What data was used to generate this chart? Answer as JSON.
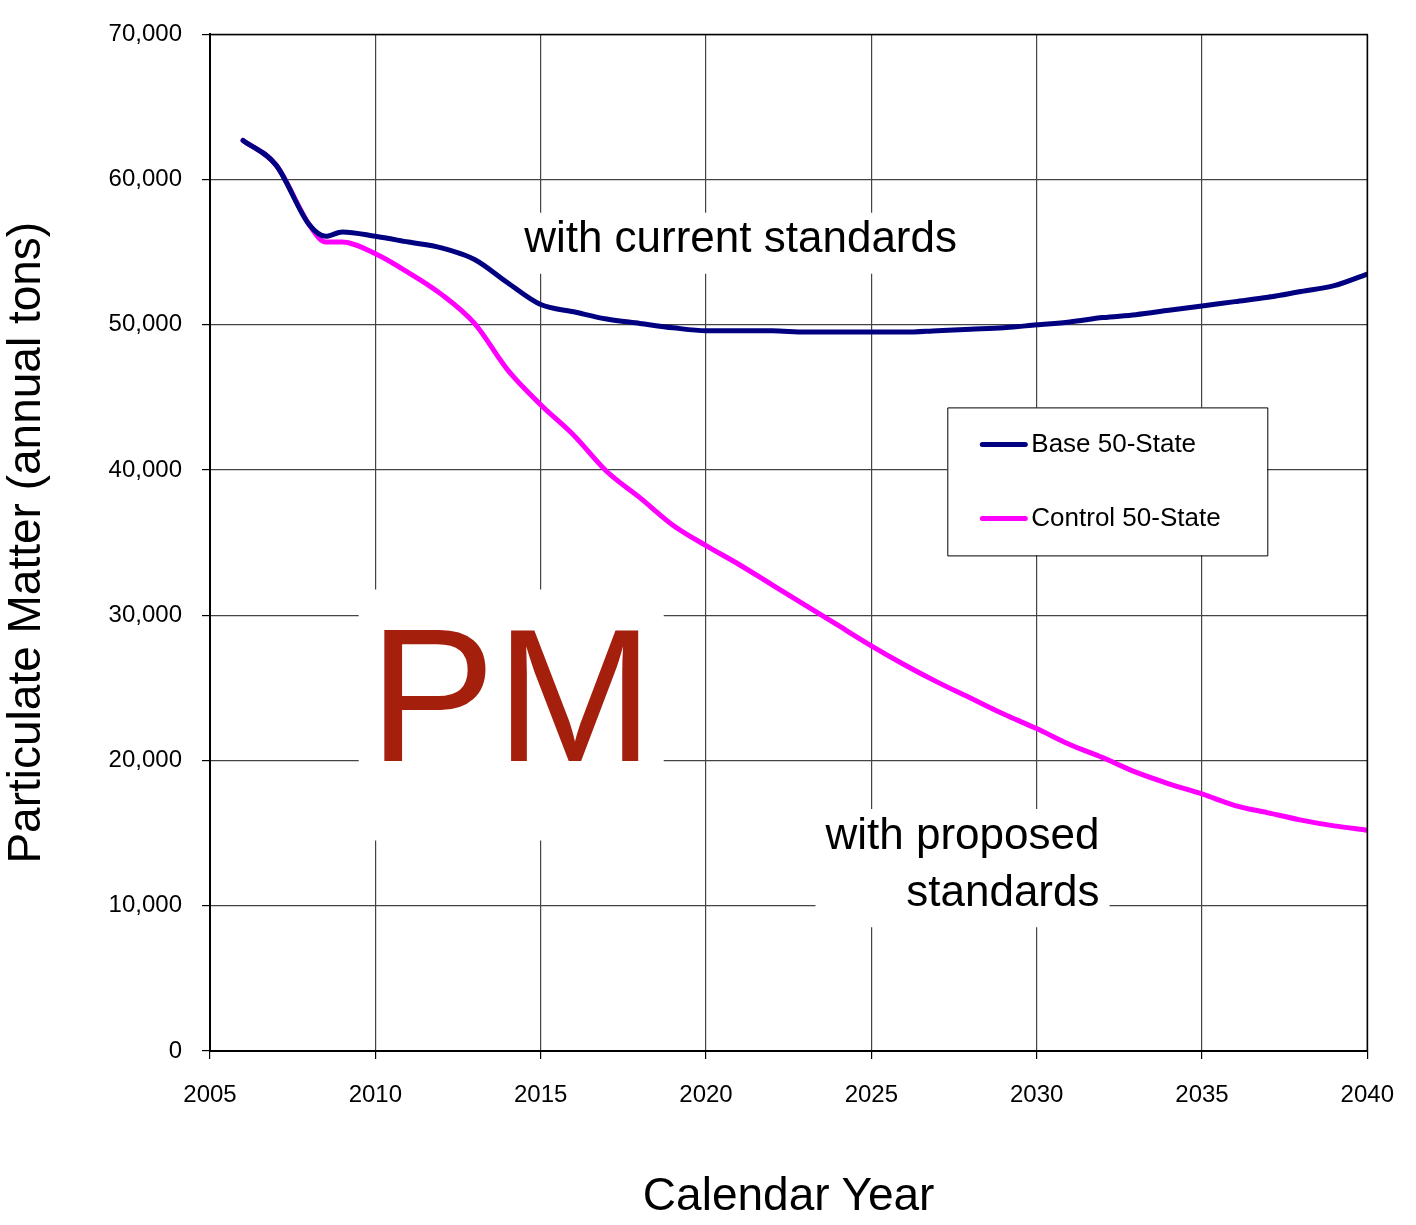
{
  "chart_data": {
    "type": "line",
    "xlabel": "Calendar Year",
    "ylabel": "Particulate Matter (annual tons)",
    "x": [
      2006,
      2007,
      2008,
      2008.5,
      2009,
      2010,
      2011,
      2012,
      2013,
      2014,
      2015,
      2016,
      2017,
      2018,
      2019,
      2020,
      2021,
      2022,
      2023,
      2024,
      2025,
      2026,
      2027,
      2028,
      2029,
      2030,
      2031,
      2032,
      2033,
      2034,
      2035,
      2036,
      2037,
      2038,
      2039,
      2040
    ],
    "series": [
      {
        "name": "Base 50-State",
        "color": "#000080",
        "values": [
          62700,
          61000,
          56900,
          56100,
          56400,
          56100,
          55700,
          55300,
          54500,
          52900,
          51400,
          50900,
          50400,
          50100,
          49800,
          49600,
          49600,
          49600,
          49500,
          49500,
          49500,
          49500,
          49600,
          49700,
          49800,
          50000,
          50200,
          50500,
          50700,
          51000,
          51300,
          51600,
          51900,
          52300,
          52700,
          53500
        ]
      },
      {
        "name": "Control 50-State",
        "color": "#ff00ff",
        "values": [
          62700,
          61000,
          56900,
          55700,
          55700,
          54900,
          53600,
          52100,
          50100,
          46900,
          44500,
          42400,
          39900,
          38100,
          36200,
          34800,
          33500,
          32100,
          30700,
          29300,
          27900,
          26600,
          25400,
          24300,
          23200,
          22200,
          21100,
          20200,
          19200,
          18400,
          17700,
          16900,
          16400,
          15900,
          15500,
          15200
        ]
      }
    ],
    "xlim": [
      2005,
      2040
    ],
    "xticks": [
      2005,
      2010,
      2015,
      2020,
      2025,
      2030,
      2035,
      2040
    ],
    "ylim": [
      0,
      70000
    ],
    "yticks": [
      {
        "value": 0,
        "label": "0"
      },
      {
        "value": 10000,
        "label": "10,000"
      },
      {
        "value": 20000,
        "label": "20,000"
      },
      {
        "value": 30000,
        "label": "30,000"
      },
      {
        "value": 40000,
        "label": "40,000"
      },
      {
        "value": 50000,
        "label": "50,000"
      },
      {
        "value": 60000,
        "label": "60,000"
      },
      {
        "value": 70000,
        "label": "70,000"
      }
    ],
    "grid": true,
    "legend": "right",
    "line_style": "solid",
    "annotations": [
      "with current standards",
      "PM",
      "with proposed standards"
    ]
  }
}
